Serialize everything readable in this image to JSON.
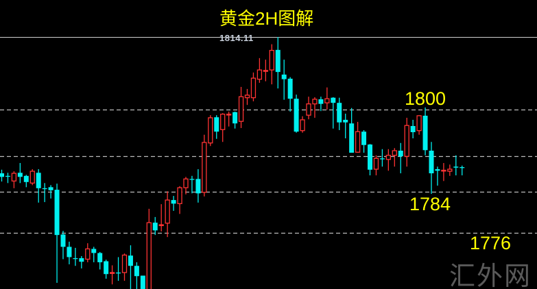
{
  "chart_data": {
    "type": "candlestick",
    "title": "黄金2H图解",
    "ylim": [
      1765.1,
      1821.3
    ],
    "grid": false,
    "colors": {
      "up": "#ff3333",
      "down": "#00f0f0",
      "level_line": "#bdbdbd",
      "label": "#ffff00",
      "background": "#000000"
    },
    "high_marker": {
      "label": "1814.11",
      "value": 1814.11
    },
    "levels": [
      1800,
      1791,
      1784,
      1776
    ],
    "annotations": [
      {
        "text": "1800",
        "value": 1800
      },
      {
        "text": "1784",
        "value": 1784
      },
      {
        "text": "1776",
        "value": 1776
      }
    ],
    "ohlc": [
      [
        1787.6,
        1788.3,
        1786.0,
        1786.9
      ],
      [
        1787.1,
        1787.7,
        1785.7,
        1787.0
      ],
      [
        1786.1,
        1788.0,
        1784.7,
        1787.6
      ],
      [
        1787.7,
        1789.6,
        1785.7,
        1786.9
      ],
      [
        1787.1,
        1787.3,
        1784.9,
        1785.9
      ],
      [
        1785.7,
        1788.4,
        1785.3,
        1788.0
      ],
      [
        1787.7,
        1788.4,
        1781.9,
        1784.7
      ],
      [
        1784.7,
        1785.7,
        1782.0,
        1784.6
      ],
      [
        1784.9,
        1785.3,
        1782.7,
        1784.3
      ],
      [
        1784.4,
        1785.6,
        1766.3,
        1775.6
      ],
      [
        1775.7,
        1776.4,
        1770.9,
        1773.3
      ],
      [
        1773.3,
        1774.3,
        1769.9,
        1771.3
      ],
      [
        1771.1,
        1773.1,
        1769.6,
        1771.0
      ],
      [
        1771.1,
        1771.5,
        1769.1,
        1770.4
      ],
      [
        1770.9,
        1774.0,
        1770.3,
        1772.9
      ],
      [
        1772.9,
        1773.3,
        1770.3,
        1772.1
      ],
      [
        1772.1,
        1772.3,
        1768.9,
        1770.3
      ],
      [
        1770.5,
        1770.8,
        1767.1,
        1768.0
      ],
      [
        1768.2,
        1769.7,
        1766.0,
        1768.3
      ],
      [
        1768.3,
        1771.3,
        1766.7,
        1768.2
      ],
      [
        1768.3,
        1772.0,
        1766.7,
        1771.7
      ],
      [
        1771.6,
        1773.6,
        1765.1,
        1769.6
      ],
      [
        1769.6,
        1770.3,
        1765.1,
        1767.6
      ],
      [
        1767.7,
        1767.7,
        1762.7,
        1764.0
      ],
      [
        1764.0,
        1780.7,
        1762.7,
        1778.0
      ],
      [
        1778.0,
        1779.1,
        1775.6,
        1776.5
      ],
      [
        1777.5,
        1781.6,
        1776.3,
        1777.6
      ],
      [
        1777.9,
        1784.1,
        1775.2,
        1782.4
      ],
      [
        1782.4,
        1783.2,
        1780.3,
        1781.7
      ],
      [
        1781.7,
        1785.1,
        1779.7,
        1784.8
      ],
      [
        1784.8,
        1786.9,
        1783.5,
        1786.5
      ],
      [
        1786.5,
        1787.1,
        1783.7,
        1786.4
      ],
      [
        1786.5,
        1788.4,
        1781.9,
        1783.7
      ],
      [
        1783.9,
        1795.1,
        1783.1,
        1793.6
      ],
      [
        1793.5,
        1798.9,
        1792.9,
        1798.4
      ],
      [
        1798.5,
        1798.9,
        1794.3,
        1795.7
      ],
      [
        1796.1,
        1799.3,
        1793.7,
        1799.1
      ],
      [
        1799.0,
        1799.6,
        1796.7,
        1799.1
      ],
      [
        1799.5,
        1799.6,
        1796.3,
        1797.3
      ],
      [
        1797.7,
        1804.4,
        1796.4,
        1802.5
      ],
      [
        1802.3,
        1804.0,
        1800.9,
        1802.8
      ],
      [
        1802.3,
        1807.2,
        1801.6,
        1806.1
      ],
      [
        1805.9,
        1810.0,
        1805.2,
        1807.7
      ],
      [
        1807.5,
        1809.7,
        1805.5,
        1807.6
      ],
      [
        1807.7,
        1812.7,
        1804.9,
        1811.5
      ],
      [
        1811.6,
        1814.11,
        1804.1,
        1807.3
      ],
      [
        1806.8,
        1809.7,
        1801.9,
        1805.9
      ],
      [
        1806.0,
        1806.3,
        1799.6,
        1802.1
      ],
      [
        1802.1,
        1802.9,
        1795.5,
        1795.7
      ],
      [
        1795.9,
        1798.7,
        1795.5,
        1798.0
      ],
      [
        1798.9,
        1802.5,
        1798.1,
        1801.1
      ],
      [
        1801.1,
        1802.4,
        1798.4,
        1802.0
      ],
      [
        1802.0,
        1802.5,
        1799.7,
        1801.1
      ],
      [
        1801.3,
        1804.3,
        1800.0,
        1802.1
      ],
      [
        1802.3,
        1802.4,
        1796.3,
        1801.3
      ],
      [
        1801.3,
        1802.3,
        1796.0,
        1797.5
      ],
      [
        1798.0,
        1799.2,
        1794.4,
        1797.5
      ],
      [
        1797.3,
        1800.3,
        1791.6,
        1791.6
      ],
      [
        1791.7,
        1797.6,
        1791.6,
        1795.7
      ],
      [
        1795.7,
        1796.0,
        1791.6,
        1793.1
      ],
      [
        1793.2,
        1793.3,
        1787.2,
        1788.3
      ],
      [
        1788.4,
        1791.1,
        1787.2,
        1790.5
      ],
      [
        1790.5,
        1792.3,
        1788.9,
        1790.4
      ],
      [
        1790.3,
        1792.3,
        1788.1,
        1791.1
      ],
      [
        1791.1,
        1792.5,
        1788.9,
        1792.0
      ],
      [
        1792.0,
        1793.5,
        1787.6,
        1790.9
      ],
      [
        1790.9,
        1798.4,
        1788.9,
        1796.9
      ],
      [
        1796.8,
        1798.0,
        1794.4,
        1795.6
      ],
      [
        1795.9,
        1798.9,
        1795.1,
        1798.8
      ],
      [
        1798.8,
        1800.4,
        1791.1,
        1792.1
      ],
      [
        1792.0,
        1793.7,
        1783.6,
        1787.6
      ],
      [
        1788.4,
        1788.9,
        1785.2,
        1788.1
      ],
      [
        1788.1,
        1789.6,
        1786.1,
        1788.2
      ],
      [
        1788.0,
        1789.3,
        1787.1,
        1788.4
      ],
      [
        1788.9,
        1791.1,
        1787.2,
        1788.7
      ],
      [
        1788.8,
        1789.1,
        1787.2,
        1788.7
      ]
    ]
  },
  "watermark": "汇外网"
}
